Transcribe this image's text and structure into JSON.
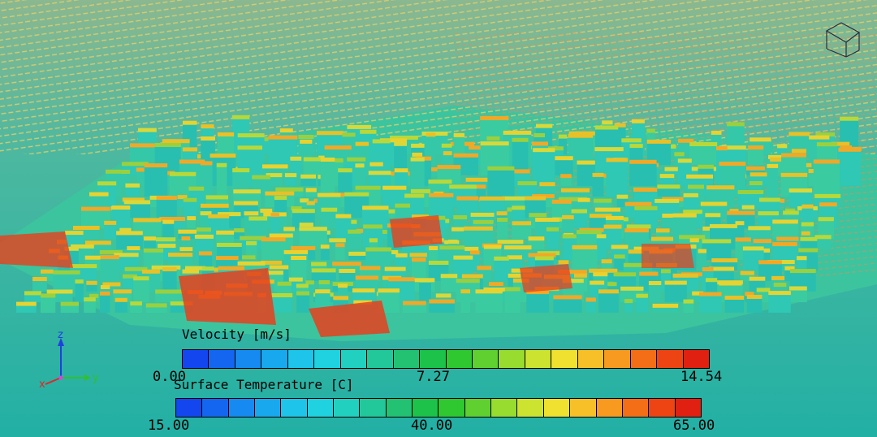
{
  "legends": [
    {
      "title": "Velocity [m/s]",
      "min_label": "0.00",
      "mid_label": "7.27",
      "max_label": "14.54",
      "colors": [
        "#1446f0",
        "#1466f0",
        "#168af0",
        "#18a8ee",
        "#1ec4ea",
        "#20d2e0",
        "#22d0c0",
        "#22c89a",
        "#22c272",
        "#1cc24a",
        "#30c830",
        "#60d030",
        "#98dc30",
        "#cce430",
        "#f0e030",
        "#f8c028",
        "#f89a20",
        "#f46e18",
        "#ee4414",
        "#e02010"
      ]
    },
    {
      "title": "Surface Temperature [C]",
      "min_label": "15.00",
      "mid_label": "40.00",
      "max_label": "65.00",
      "colors": [
        "#1446f0",
        "#1466f0",
        "#168af0",
        "#18a8ee",
        "#1ec4ea",
        "#20d2e0",
        "#22d0c0",
        "#22c89a",
        "#22c272",
        "#1cc24a",
        "#30c830",
        "#60d030",
        "#98dc30",
        "#cce430",
        "#f0e030",
        "#f8c028",
        "#f89a20",
        "#f46e18",
        "#ee4414",
        "#e02010"
      ]
    }
  ],
  "axes": {
    "z": "z",
    "y": "y",
    "x": "x"
  },
  "colors": {
    "ground": "#22b0a4",
    "building_base": "#2ec8b4",
    "roof_hot": "#e8d230",
    "hot": "#e8401c",
    "wind_warm": "#d8c060",
    "wind_cool": "#6ad8b8"
  }
}
